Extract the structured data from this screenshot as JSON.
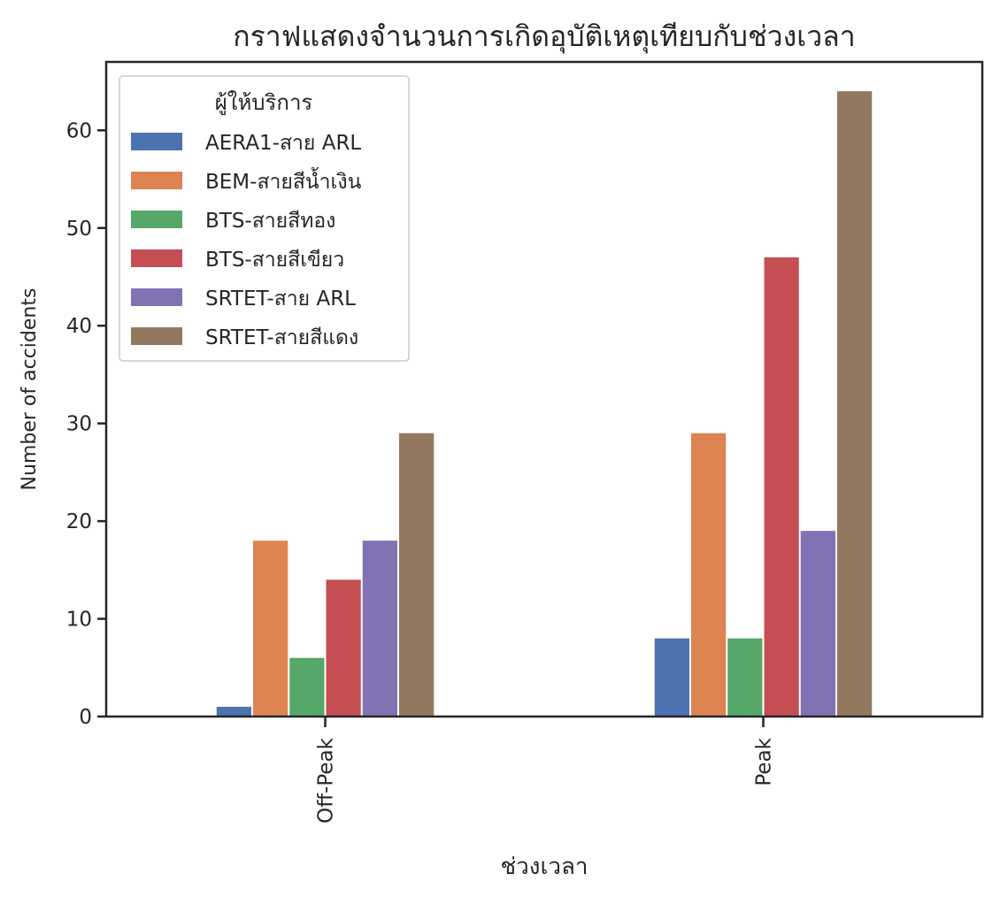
{
  "chart_data": {
    "type": "bar",
    "title": "กราฟแสดงจำนวนการเกิดอุบัติเหตุเทียบกับช่วงเวลา",
    "xlabel": "ช่วงเวลา",
    "ylabel": "Number of accidents",
    "categories": [
      "Off-Peak",
      "Peak"
    ],
    "ylim": [
      0,
      67
    ],
    "yticks": [
      0,
      10,
      20,
      30,
      40,
      50,
      60
    ],
    "grid": false,
    "legend": {
      "title": "ผู้ให้บริการ",
      "placement": "top-left"
    },
    "series": [
      {
        "name": "AERA1-สาย ARL",
        "color": "#4c72b0",
        "values": [
          1,
          8
        ]
      },
      {
        "name": "BEM-สายสีน้ำเงิน",
        "color": "#dd8452",
        "values": [
          18,
          29
        ]
      },
      {
        "name": "BTS-สายสีทอง",
        "color": "#55a868",
        "values": [
          6,
          8
        ]
      },
      {
        "name": "BTS-สายสีเขียว",
        "color": "#c44e52",
        "values": [
          14,
          47
        ]
      },
      {
        "name": "SRTET-สาย ARL",
        "color": "#8172b3",
        "values": [
          18,
          19
        ]
      },
      {
        "name": "SRTET-สายสีแดง",
        "color": "#937860",
        "values": [
          29,
          64
        ]
      }
    ]
  }
}
